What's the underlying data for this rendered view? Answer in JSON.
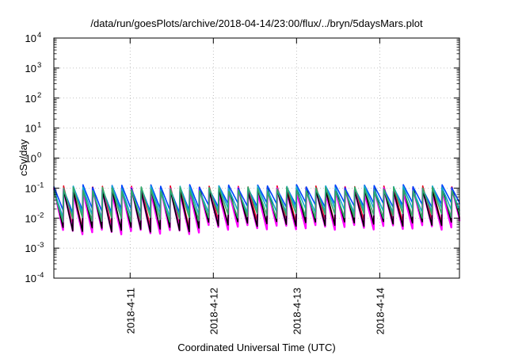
{
  "chart_data": {
    "type": "line",
    "title": "/data/run/goesPlots/archive/2018-04-14/23:00/flux/../bryn/5daysMars.plot",
    "xlabel": "Coordinated Universal Time (UTC)",
    "ylabel": "cSv/day",
    "yscale": "log",
    "ylim": [
      0.0001,
      10000
    ],
    "xlim": [
      "2018-04-10 02:00",
      "2018-04-14 23:00"
    ],
    "grid": true,
    "legend": "none",
    "y_ticks": [
      {
        "base": "10",
        "exp": "-4",
        "value": 0.0001
      },
      {
        "base": "10",
        "exp": "-3",
        "value": 0.001
      },
      {
        "base": "10",
        "exp": "-2",
        "value": 0.01
      },
      {
        "base": "10",
        "exp": "-1",
        "value": 0.1
      },
      {
        "base": "10",
        "exp": "0",
        "value": 1
      },
      {
        "base": "10",
        "exp": "1",
        "value": 10
      },
      {
        "base": "10",
        "exp": "2",
        "value": 100
      },
      {
        "base": "10",
        "exp": "3",
        "value": 1000
      },
      {
        "base": "10",
        "exp": "4",
        "value": 10000
      }
    ],
    "x_ticks": [
      {
        "label": "2018-4-11",
        "value": "2018-04-11 00:00"
      },
      {
        "label": "2018-4-12",
        "value": "2018-04-12 00:00"
      },
      {
        "label": "2018-4-13",
        "value": "2018-04-13 00:00"
      },
      {
        "label": "2018-4-14",
        "value": "2018-04-14 00:00"
      }
    ],
    "sawtooth_period_hours": 2.8,
    "series": [
      {
        "color": "#e8001e",
        "peak": 0.1,
        "trough_day1": 0.0045,
        "trough_later": 0.007
      },
      {
        "color": "#ff00ff",
        "peak": 0.088,
        "trough_day1": 0.0035,
        "trough_later": 0.005
      },
      {
        "color": "#000000",
        "peak": 0.095,
        "trough_day1": 0.0042,
        "trough_later": 0.0065
      },
      {
        "color": "#0044ff",
        "peak": 0.11,
        "trough_day1": 0.018,
        "trough_later": 0.028
      },
      {
        "color": "#11aacc",
        "peak": 0.1,
        "trough_day1": 0.012,
        "trough_later": 0.018
      },
      {
        "color": "#33aa66",
        "peak": 0.092,
        "trough_day1": 0.009,
        "trough_later": 0.012
      }
    ]
  }
}
